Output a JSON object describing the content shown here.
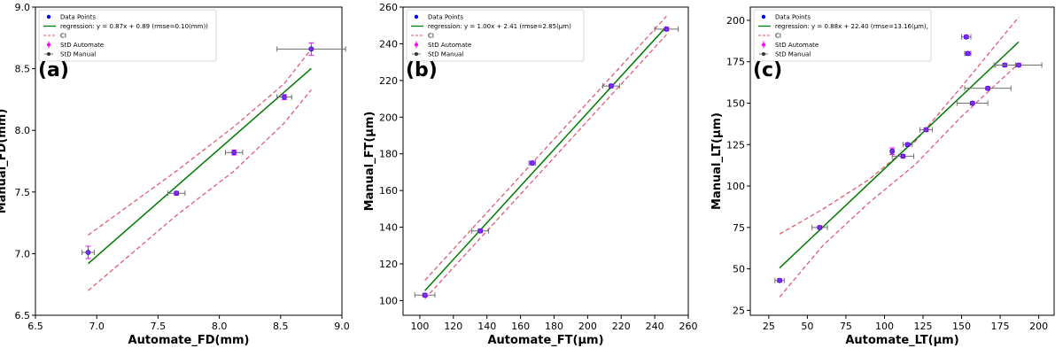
{
  "chart_data": [
    {
      "type": "scatter",
      "panel_label": "(a)",
      "xlabel": "Automate_FD(mm)",
      "ylabel": "Manual_FD(mm)",
      "xlim": [
        6.5,
        9.0
      ],
      "ylim": [
        6.5,
        9.0
      ],
      "xticks": [
        "6.5",
        "7.0",
        "7.5",
        "8.0",
        "8.5",
        "9.0"
      ],
      "yticks": [
        "6.5",
        "7.0",
        "7.5",
        "8.0",
        "8.5",
        "9.0"
      ],
      "legend": [
        "Data Points",
        "regression: y = 0.87x + 0.89 (rmse=0.10(mm))",
        "CI",
        "StD Automate",
        "StD Manual"
      ],
      "legend_position": "top-left",
      "points": [
        {
          "x": 6.93,
          "y": 7.01,
          "xerr": 0.05,
          "yerr": 0.05
        },
        {
          "x": 7.65,
          "y": 7.49,
          "xerr": 0.07,
          "yerr": 0.015
        },
        {
          "x": 8.12,
          "y": 7.82,
          "xerr": 0.07,
          "yerr": 0.02
        },
        {
          "x": 8.53,
          "y": 8.27,
          "xerr": 0.06,
          "yerr": 0.02
        },
        {
          "x": 8.75,
          "y": 8.66,
          "xerr": 0.28,
          "yerr": 0.05
        }
      ],
      "regression": {
        "slope": 0.87,
        "intercept": 0.89,
        "x": [
          6.93,
          8.75
        ]
      },
      "ci_upper": [
        [
          6.93,
          7.15
        ],
        [
          7.65,
          7.67
        ],
        [
          8.12,
          8.03
        ],
        [
          8.53,
          8.38
        ],
        [
          8.75,
          8.66
        ]
      ],
      "ci_lower": [
        [
          6.93,
          6.7
        ],
        [
          7.65,
          7.31
        ],
        [
          8.12,
          7.67
        ],
        [
          8.53,
          8.06
        ],
        [
          8.75,
          8.33
        ]
      ],
      "colors": {
        "points": "#0000ff",
        "regression": "#007a00",
        "ci": "#e0506a",
        "std_automate": "#ff00ff",
        "std_manual": "#6e6e6e",
        "point_fill": "#8a2be2"
      }
    },
    {
      "type": "scatter",
      "panel_label": "(b)",
      "xlabel": "Automate_FT(µm)",
      "ylabel": "Manual_FT(µm)",
      "xlim": [
        90,
        260
      ],
      "ylim": [
        92,
        260
      ],
      "xticks": [
        "100",
        "120",
        "140",
        "160",
        "180",
        "200",
        "220",
        "240",
        "260"
      ],
      "yticks": [
        "100",
        "120",
        "140",
        "160",
        "180",
        "200",
        "220",
        "240",
        "260"
      ],
      "legend": [
        "Data Points",
        "regression: y = 1.00x + 2.41 (rmse=2.85(µm)",
        "CI",
        "StD Automate",
        "StD Manual"
      ],
      "legend_position": "top-left",
      "points": [
        {
          "x": 103,
          "y": 103,
          "xerr": 6,
          "yerr": 1
        },
        {
          "x": 136,
          "y": 138,
          "xerr": 5,
          "yerr": 1
        },
        {
          "x": 167,
          "y": 175,
          "xerr": 2,
          "yerr": 1
        },
        {
          "x": 214,
          "y": 217,
          "xerr": 5,
          "yerr": 1
        },
        {
          "x": 247,
          "y": 248,
          "xerr": 7,
          "yerr": 1
        }
      ],
      "regression": {
        "slope": 1.0,
        "intercept": 2.41,
        "x": [
          103,
          247
        ]
      },
      "ci_upper": [
        [
          103,
          111
        ],
        [
          247,
          255
        ]
      ],
      "ci_lower": [
        [
          103,
          101
        ],
        [
          247,
          245
        ]
      ],
      "colors": {
        "points": "#0000ff",
        "regression": "#007a00",
        "ci": "#e0506a",
        "std_automate": "#ff00ff",
        "std_manual": "#6e6e6e",
        "point_fill": "#8a2be2"
      }
    },
    {
      "type": "scatter",
      "panel_label": "(c)",
      "xlabel": "Automate_LT(µm)",
      "ylabel": "Manual_LT(µm)",
      "xlim": [
        13,
        210
      ],
      "ylim": [
        22,
        208
      ],
      "xticks": [
        "25",
        "50",
        "75",
        "100",
        "125",
        "150",
        "175",
        "200"
      ],
      "yticks": [
        "25",
        "50",
        "75",
        "100",
        "125",
        "150",
        "175",
        "200"
      ],
      "legend": [
        "Data Points",
        "regression: y = 0.88x + 22.40 (rmse=13.16(µm),",
        "CI",
        "StD Automate",
        "StD Manual"
      ],
      "legend_position": "top-left",
      "points": [
        {
          "x": 32,
          "y": 43,
          "xerr": 3,
          "yerr": 1
        },
        {
          "x": 58,
          "y": 75,
          "xerr": 5,
          "yerr": 1
        },
        {
          "x": 105,
          "y": 121,
          "xerr": 1,
          "yerr": 2
        },
        {
          "x": 112,
          "y": 118,
          "xerr": 7,
          "yerr": 1
        },
        {
          "x": 115,
          "y": 125,
          "xerr": 3,
          "yerr": 1
        },
        {
          "x": 127,
          "y": 134,
          "xerr": 4,
          "yerr": 1
        },
        {
          "x": 153,
          "y": 190,
          "xerr": 3,
          "yerr": 1
        },
        {
          "x": 154,
          "y": 180,
          "xerr": 2,
          "yerr": 1
        },
        {
          "x": 157,
          "y": 150,
          "xerr": 10,
          "yerr": 1
        },
        {
          "x": 167,
          "y": 159,
          "xerr": 15,
          "yerr": 1
        },
        {
          "x": 178,
          "y": 173,
          "xerr": 7,
          "yerr": 1
        },
        {
          "x": 187,
          "y": 173,
          "xerr": 15,
          "yerr": 1
        }
      ],
      "regression": {
        "slope": 0.88,
        "intercept": 22.4,
        "x": [
          32,
          187
        ]
      },
      "ci_upper": [
        [
          32,
          71
        ],
        [
          60,
          86
        ],
        [
          90,
          104
        ],
        [
          120,
          127
        ],
        [
          150,
          160
        ],
        [
          187,
          202
        ]
      ],
      "ci_lower": [
        [
          32,
          33
        ],
        [
          60,
          64
        ],
        [
          90,
          90
        ],
        [
          120,
          113
        ],
        [
          150,
          142
        ],
        [
          187,
          174
        ]
      ],
      "colors": {
        "points": "#0000ff",
        "regression": "#007a00",
        "ci": "#e0506a",
        "std_automate": "#ff00ff",
        "std_manual": "#6e6e6e",
        "point_fill": "#8a2be2"
      }
    }
  ]
}
